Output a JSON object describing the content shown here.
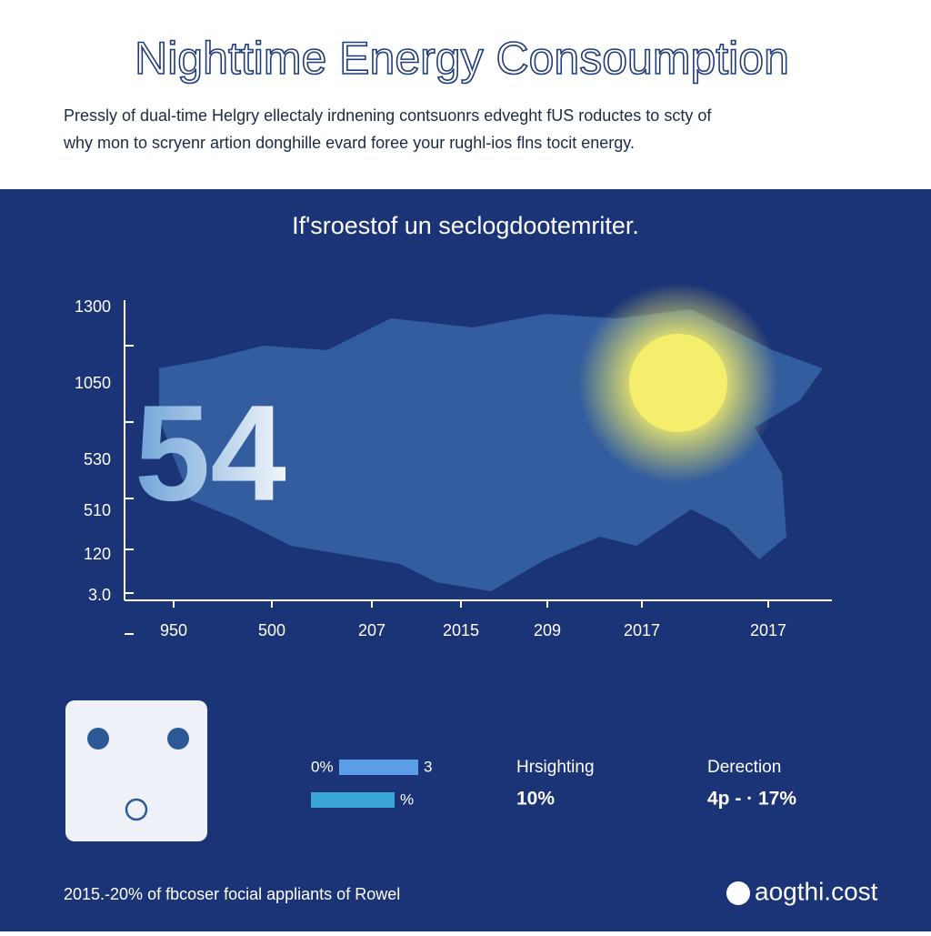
{
  "header": {
    "title": "Nighttime Energy Consoumption",
    "subtitle": [
      "Pressly of dual-time Helgry ellectaly irdnening contsuonrs edveght fUS roductes to scty of",
      "why mon to scryenr artion donghille evard foree your rughl-ios flns tocit energy."
    ]
  },
  "panel": {
    "heading": "If'sroestof un seclogdootemriter.",
    "y_labels": [
      "1300",
      "1050",
      "530",
      "510",
      "120",
      "3.0"
    ],
    "x_labels": [
      "950",
      "500",
      "207",
      "2015",
      "209",
      "2017",
      "2017"
    ],
    "big_number": "54"
  },
  "stats": {
    "bar_1_left": "0%",
    "bar_1_right": "3",
    "bar_2_right": "%",
    "stat_1_label": "Hrsighting",
    "stat_1_value": "10%",
    "stat_2_label": "Derection",
    "stat_2_value": "4p - · 17%"
  },
  "footer": {
    "note": "2015.-20% of fbcoser focial appliants of Rowel",
    "brand": "aogthi.cost"
  }
}
